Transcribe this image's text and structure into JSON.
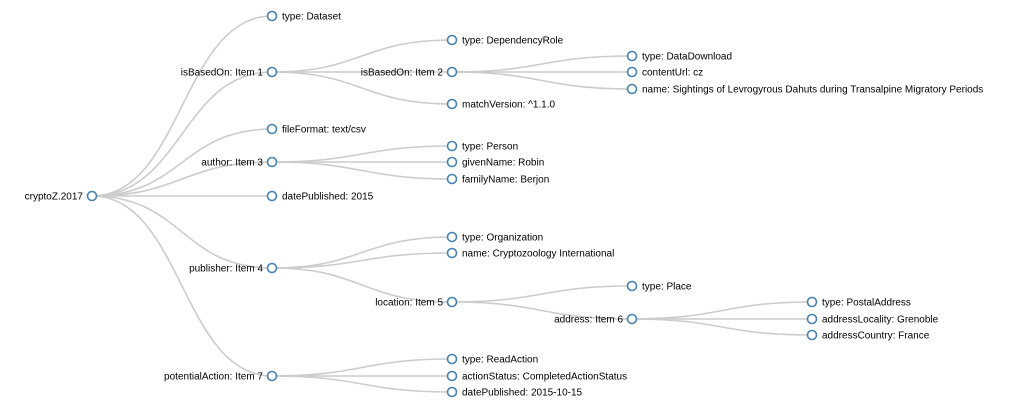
{
  "tree": {
    "id": "root",
    "label": "cryptoZ.2017",
    "children": [
      {
        "id": "n1",
        "label": "type: Dataset"
      },
      {
        "id": "n2",
        "label": "isBasedOn: Item 1",
        "children": [
          {
            "id": "n2a",
            "label": "type: DependencyRole"
          },
          {
            "id": "n2b",
            "label": "isBasedOn: Item 2",
            "children": [
              {
                "id": "n2b1",
                "label": "type: DataDownload"
              },
              {
                "id": "n2b2",
                "label": "contentUrl: cz"
              },
              {
                "id": "n2b3",
                "label": "name: Sightings of Levrogyrous Dahuts during Transalpine Migratory Periods"
              }
            ]
          },
          {
            "id": "n2c",
            "label": "matchVersion: ^1.1.0"
          }
        ]
      },
      {
        "id": "n3",
        "label": "fileFormat: text/csv"
      },
      {
        "id": "n4",
        "label": "author: Item 3",
        "children": [
          {
            "id": "n4a",
            "label": "type: Person"
          },
          {
            "id": "n4b",
            "label": "givenName: Robin"
          },
          {
            "id": "n4c",
            "label": "familyName: Berjon"
          }
        ]
      },
      {
        "id": "n5",
        "label": "datePublished: 2015"
      },
      {
        "id": "n6",
        "label": "publisher: Item 4",
        "children": [
          {
            "id": "n6a",
            "label": "type: Organization"
          },
          {
            "id": "n6b",
            "label": "name: Cryptozoology International"
          },
          {
            "id": "n6c",
            "label": "location: Item 5",
            "children": [
              {
                "id": "n6c1",
                "label": "type: Place"
              },
              {
                "id": "n6c2",
                "label": "address: Item 6",
                "children": [
                  {
                    "id": "n6c2a",
                    "label": "type: PostalAddress"
                  },
                  {
                    "id": "n6c2b",
                    "label": "addressLocality: Grenoble"
                  },
                  {
                    "id": "n6c2c",
                    "label": "addressCountry: France"
                  }
                ]
              }
            ]
          }
        ]
      },
      {
        "id": "n7",
        "label": "potentialAction: Item 7",
        "children": [
          {
            "id": "n7a",
            "label": "type: ReadAction"
          },
          {
            "id": "n7b",
            "label": "actionStatus: CompletedActionStatus"
          },
          {
            "id": "n7c",
            "label": "datePublished: 2015-10-15"
          }
        ]
      }
    ]
  }
}
